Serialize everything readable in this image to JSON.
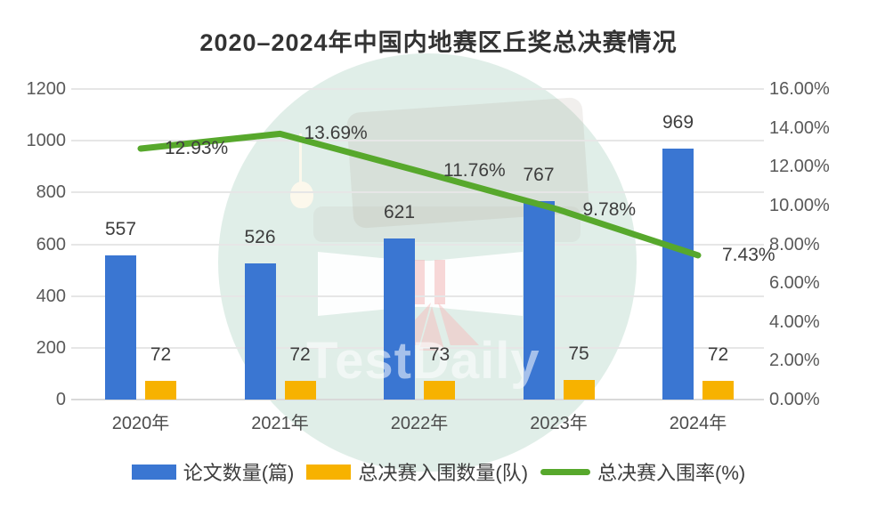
{
  "title": "2020–2024年中国内地赛区丘奖总决赛情况",
  "watermark": {
    "text": "TestDaily"
  },
  "legend": {
    "items": [
      "论文数量(篇)",
      "总决赛入围数量(队)",
      "总决赛入围率(%)"
    ]
  },
  "chart_data": {
    "type": "combo-bar-line",
    "title": "2020–2024年中国内地赛区丘奖总决赛情况",
    "categories": [
      "2020年",
      "2021年",
      "2022年",
      "2023年",
      "2024年"
    ],
    "series": [
      {
        "name": "论文数量(篇)",
        "type": "bar",
        "axis": "left",
        "color": "#3A76D2",
        "values": [
          557,
          526,
          621,
          767,
          969
        ]
      },
      {
        "name": "总决赛入围数量(队)",
        "type": "bar",
        "axis": "left",
        "color": "#F7B200",
        "values": [
          72,
          72,
          73,
          75,
          72
        ]
      },
      {
        "name": "总决赛入围率(%)",
        "type": "line",
        "axis": "right",
        "color": "#57A82C",
        "values": [
          12.93,
          13.69,
          11.76,
          9.78,
          7.43
        ],
        "labels": [
          "12.93%",
          "13.69%",
          "11.76%",
          "9.78%",
          "7.43%"
        ]
      }
    ],
    "left_axis": {
      "min": 0,
      "max": 1200,
      "step": 200,
      "ticks": [
        "1200",
        "1000",
        "800",
        "600",
        "400",
        "200",
        "0"
      ]
    },
    "right_axis": {
      "min": 0,
      "max": 16,
      "step": 2,
      "ticks": [
        "16.00%",
        "14.00%",
        "12.00%",
        "10.00%",
        "8.00%",
        "6.00%",
        "4.00%",
        "2.00%",
        "0.00%"
      ]
    },
    "grid": true,
    "legend_position": "bottom"
  }
}
